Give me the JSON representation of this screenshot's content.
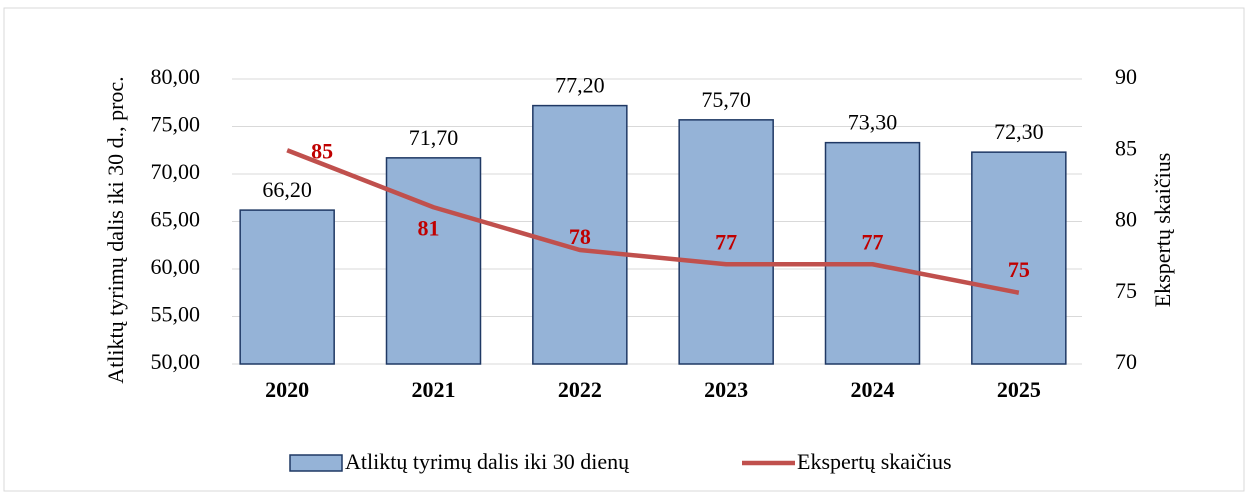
{
  "chart_data": {
    "type": "bar-line",
    "categories": [
      "2020",
      "2021",
      "2022",
      "2023",
      "2024",
      "2025"
    ],
    "series": [
      {
        "name": "Atliktų tyrimų dalis iki 30 dienų",
        "color": "#95b3d7",
        "values": [
          66.2,
          71.7,
          77.2,
          75.7,
          73.3,
          72.3
        ],
        "value_labels": [
          "66,20",
          "71,70",
          "77,20",
          "75,70",
          "73,30",
          "72,30"
        ]
      },
      {
        "name": "Ekspertų skaičius",
        "color": "#c0504d",
        "axis": "y2",
        "values": [
          85,
          81,
          78,
          77,
          77,
          75
        ]
      }
    ],
    "ylabel": "Atliktų tyrimų dalis iki 30 d., proc.",
    "y2label": "Ekspertų skaičius",
    "ylim": [
      50,
      80
    ],
    "yticks": [
      {
        "value": 50,
        "label": "50,00"
      },
      {
        "value": 55,
        "label": "55,00"
      },
      {
        "value": 60,
        "label": "60,00"
      },
      {
        "value": 65,
        "label": "65,00"
      },
      {
        "value": 70,
        "label": "70,00"
      },
      {
        "value": 75,
        "label": "75,00"
      },
      {
        "value": 80,
        "label": "80,00"
      }
    ],
    "y2lim": [
      70,
      90
    ],
    "y2ticks": [
      70,
      75,
      80,
      85,
      90
    ],
    "grid": true,
    "legend": "bottom"
  }
}
